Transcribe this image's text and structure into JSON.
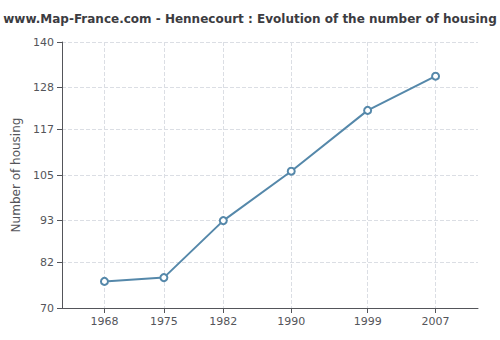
{
  "chart_data": {
    "type": "line",
    "title": "www.Map-France.com - Hennecourt : Evolution of the number of housing",
    "ylabel": "Number of housing",
    "x": [
      1968,
      1975,
      1982,
      1990,
      1999,
      2007
    ],
    "values": [
      77,
      78,
      93,
      106,
      122,
      131
    ],
    "xlim": [
      1963,
      2012
    ],
    "xticks": [
      1968,
      1975,
      1982,
      1990,
      1999,
      2007
    ],
    "ylim": [
      70,
      140
    ],
    "yticks": [
      70,
      82,
      93,
      105,
      117,
      128,
      140
    ],
    "color": "#5588aa",
    "marker": "circle",
    "grid": true
  }
}
